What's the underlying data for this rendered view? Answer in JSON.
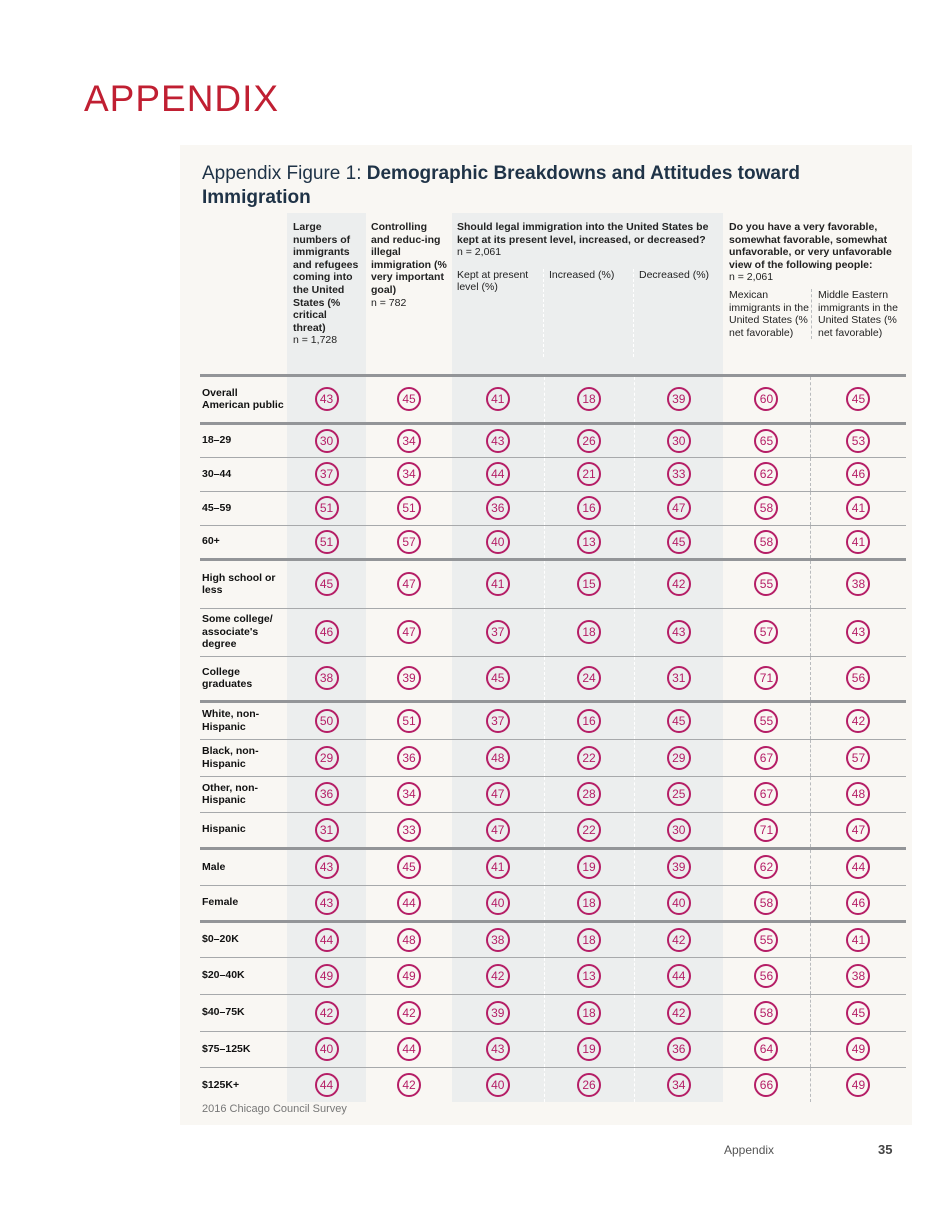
{
  "page_title": "APPENDIX",
  "figure": {
    "title_prefix": "Appendix Figure 1: ",
    "title_bold": "Demographic Breakdowns and Attitudes toward Immigration"
  },
  "columns": {
    "c1": {
      "bold": "Large numbers of immigrants and refugees coming into the United States (% critical threat)",
      "n": "n = 1,728"
    },
    "c2": {
      "bold": "Controlling and reduc-ing illegal immigration (% very important goal)",
      "n": "n = 782"
    },
    "q3": {
      "bold": "Should legal immigration into the United States be kept at its present level, increased, or decreased?",
      "n": "n = 2,061",
      "subs": [
        "Kept at present level (%)",
        "Increased (%)",
        "Decreased (%)"
      ]
    },
    "q4": {
      "bold": "Do you have a very favorable, somewhat favorable, somewhat unfavorable, or very unfavorable view of the following people:",
      "n": "n = 2,061",
      "subs": [
        "Mexican immigrants in the United States (% net favorable)",
        "Middle Eastern immigrants in the United States (% net favorable)"
      ]
    }
  },
  "rows": [
    {
      "label": "Overall American public",
      "values": [
        43,
        45,
        41,
        18,
        39,
        60,
        45
      ]
    },
    {
      "label": "18–29",
      "values": [
        30,
        34,
        43,
        26,
        30,
        65,
        53
      ]
    },
    {
      "label": "30–44",
      "values": [
        37,
        34,
        44,
        21,
        33,
        62,
        46
      ]
    },
    {
      "label": "45–59",
      "values": [
        51,
        51,
        36,
        16,
        47,
        58,
        41
      ]
    },
    {
      "label": "60+",
      "values": [
        51,
        57,
        40,
        13,
        45,
        58,
        41
      ]
    },
    {
      "label": "High school or less",
      "values": [
        45,
        47,
        41,
        15,
        42,
        55,
        38
      ]
    },
    {
      "label": "Some college/ associate's degree",
      "values": [
        46,
        47,
        37,
        18,
        43,
        57,
        43
      ]
    },
    {
      "label": "College graduates",
      "values": [
        38,
        39,
        45,
        24,
        31,
        71,
        56
      ]
    },
    {
      "label": "White, non-Hispanic",
      "values": [
        50,
        51,
        37,
        16,
        45,
        55,
        42
      ]
    },
    {
      "label": "Black, non-Hispanic",
      "values": [
        29,
        36,
        48,
        22,
        29,
        67,
        57
      ]
    },
    {
      "label": "Other, non-Hispanic",
      "values": [
        36,
        34,
        47,
        28,
        25,
        67,
        48
      ]
    },
    {
      "label": "Hispanic",
      "values": [
        31,
        33,
        47,
        22,
        30,
        71,
        47
      ]
    },
    {
      "label": "Male",
      "values": [
        43,
        45,
        41,
        19,
        39,
        62,
        44
      ]
    },
    {
      "label": "Female",
      "values": [
        43,
        44,
        40,
        18,
        40,
        58,
        46
      ]
    },
    {
      "label": "$0–20K",
      "values": [
        44,
        48,
        38,
        18,
        42,
        55,
        41
      ]
    },
    {
      "label": "$20–40K",
      "values": [
        49,
        49,
        42,
        13,
        44,
        56,
        38
      ]
    },
    {
      "label": "$40–75K",
      "values": [
        42,
        42,
        39,
        18,
        42,
        58,
        45
      ]
    },
    {
      "label": "$75–125K",
      "values": [
        40,
        44,
        43,
        19,
        36,
        64,
        49
      ]
    },
    {
      "label": "$125K+",
      "values": [
        44,
        42,
        40,
        26,
        34,
        66,
        49
      ]
    }
  ],
  "source": "2016 Chicago Council Survey",
  "footer": {
    "section": "Appendix",
    "page": "35"
  },
  "colors": {
    "accent": "#c01f32",
    "circle": "#b51e66",
    "title": "#1f3347"
  }
}
